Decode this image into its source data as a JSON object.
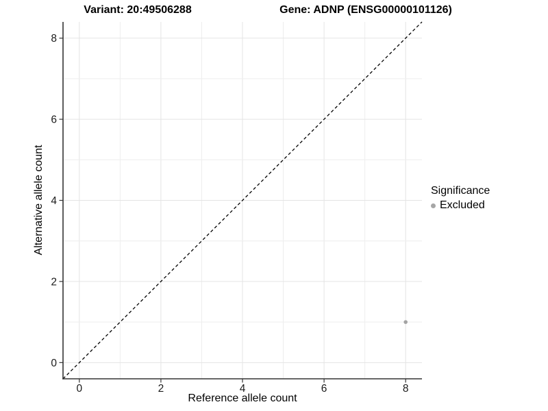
{
  "titles": {
    "variant": "Variant: 20:49506288",
    "gene": "Gene: ADNP (ENSG00000101126)"
  },
  "axes": {
    "x": {
      "label": "Reference allele count"
    },
    "y": {
      "label": "Alternative allele count"
    }
  },
  "legend": {
    "title": "Significance",
    "items": [
      {
        "label": "Excluded",
        "color": "#a6a6a6"
      }
    ]
  },
  "colors": {
    "grid_major": "#e4e4e4",
    "grid_minor": "#eeeeee",
    "axis_line": "#333333",
    "tick_mark": "#333333",
    "tick_label": "#1a1a1a",
    "reference_line": "#000000",
    "point": "#a3a3a3",
    "background": "#ffffff"
  },
  "chart_data": {
    "type": "scatter",
    "title": "Variant: 20:49506288 | Gene: ADNP (ENSG00000101126)",
    "xlabel": "Reference allele count",
    "ylabel": "Alternative allele count",
    "xlim": [
      -0.4,
      8.4
    ],
    "ylim": [
      -0.4,
      8.4
    ],
    "x_ticks": [
      0,
      2,
      4,
      6,
      8
    ],
    "y_ticks": [
      0,
      2,
      4,
      6,
      8
    ],
    "minor_grid_step": 1,
    "grid": true,
    "legend_position": "right",
    "series": [
      {
        "name": "Excluded",
        "color": "#a3a3a3",
        "points": [
          {
            "x": 8,
            "y": 1
          }
        ]
      }
    ],
    "reference_line": {
      "type": "identity",
      "style": "dashed",
      "color": "#000000",
      "from": [
        -0.4,
        -0.4
      ],
      "to": [
        8.4,
        8.4
      ]
    }
  }
}
